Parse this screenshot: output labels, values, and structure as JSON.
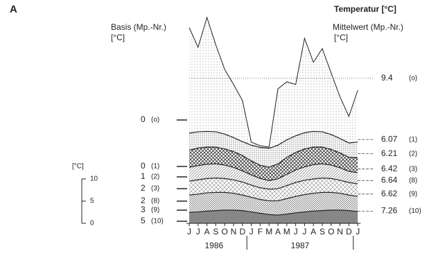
{
  "chart_data": {
    "type": "line",
    "panel_label": "A",
    "title": "Temperatur [°C]",
    "left_header": [
      "Basis (Mp.-Nr.)",
      "[°C]"
    ],
    "right_header": [
      "Mittelwert (Mp.-Nr.)",
      "[°C]"
    ],
    "categories": [
      "J",
      "J",
      "A",
      "S",
      "O",
      "N",
      "D",
      "J",
      "F",
      "M",
      "A",
      "M",
      "J",
      "J",
      "A",
      "S",
      "O",
      "N",
      "D",
      "J"
    ],
    "years": [
      "1986",
      "1987"
    ],
    "scale": {
      "unit": "[°C]",
      "ticks": [
        0,
        5,
        10
      ]
    },
    "series": [
      {
        "basis": 0,
        "probe": "(o)",
        "mean": 9.4,
        "values": [
          20.8,
          16.4,
          23.1,
          16.9,
          11.4,
          8.0,
          4.4,
          -5.0,
          -5.8,
          -6.1,
          7.0,
          8.6,
          8.0,
          18.4,
          13.0,
          16.1,
          10.6,
          5.2,
          0.8,
          6.7
        ]
      },
      {
        "basis": 0,
        "probe": "(1)",
        "mean": 6.07,
        "values": [
          7.5,
          7.8,
          7.9,
          7.8,
          7.3,
          6.5,
          5.6,
          4.8,
          4.3,
          4.1,
          4.8,
          6.0,
          6.9,
          7.6,
          7.9,
          7.8,
          7.2,
          6.3,
          5.3,
          5.5
        ]
      },
      {
        "basis": 1,
        "probe": "(2)",
        "mean": 6.21,
        "values": [
          7.0,
          7.5,
          7.7,
          7.7,
          7.3,
          6.7,
          5.8,
          4.6,
          3.6,
          3.2,
          3.9,
          5.4,
          6.5,
          7.3,
          7.7,
          7.7,
          7.2,
          6.4,
          5.4,
          5.3
        ]
      },
      {
        "basis": 2,
        "probe": "(3)",
        "mean": 6.42,
        "values": [
          6.8,
          7.2,
          7.5,
          7.6,
          7.3,
          6.8,
          6.0,
          5.1,
          4.3,
          3.8,
          4.2,
          5.2,
          6.2,
          6.9,
          7.4,
          7.6,
          7.3,
          6.7,
          5.9,
          5.6
        ]
      },
      {
        "basis": 2,
        "probe": "(8)",
        "mean": 6.64,
        "values": [
          6.5,
          6.8,
          7.1,
          7.2,
          7.1,
          6.8,
          6.3,
          5.6,
          5.0,
          4.7,
          4.8,
          5.5,
          6.2,
          6.7,
          7.0,
          7.2,
          7.1,
          6.7,
          6.2,
          5.9
        ]
      },
      {
        "basis": 3,
        "probe": "(9)",
        "mean": 6.62,
        "values": [
          6.4,
          6.6,
          6.9,
          7.0,
          7.0,
          6.8,
          6.4,
          5.9,
          5.4,
          5.1,
          5.1,
          5.6,
          6.1,
          6.5,
          6.8,
          7.0,
          7.0,
          6.8,
          6.4,
          6.1
        ]
      },
      {
        "basis": 5,
        "probe": "(10)",
        "mean": 7.26,
        "values": [
          7.0,
          7.1,
          7.3,
          7.4,
          7.5,
          7.5,
          7.4,
          7.1,
          6.8,
          6.5,
          6.4,
          6.6,
          6.9,
          7.1,
          7.3,
          7.4,
          7.5,
          7.5,
          7.4,
          7.2
        ]
      }
    ]
  }
}
